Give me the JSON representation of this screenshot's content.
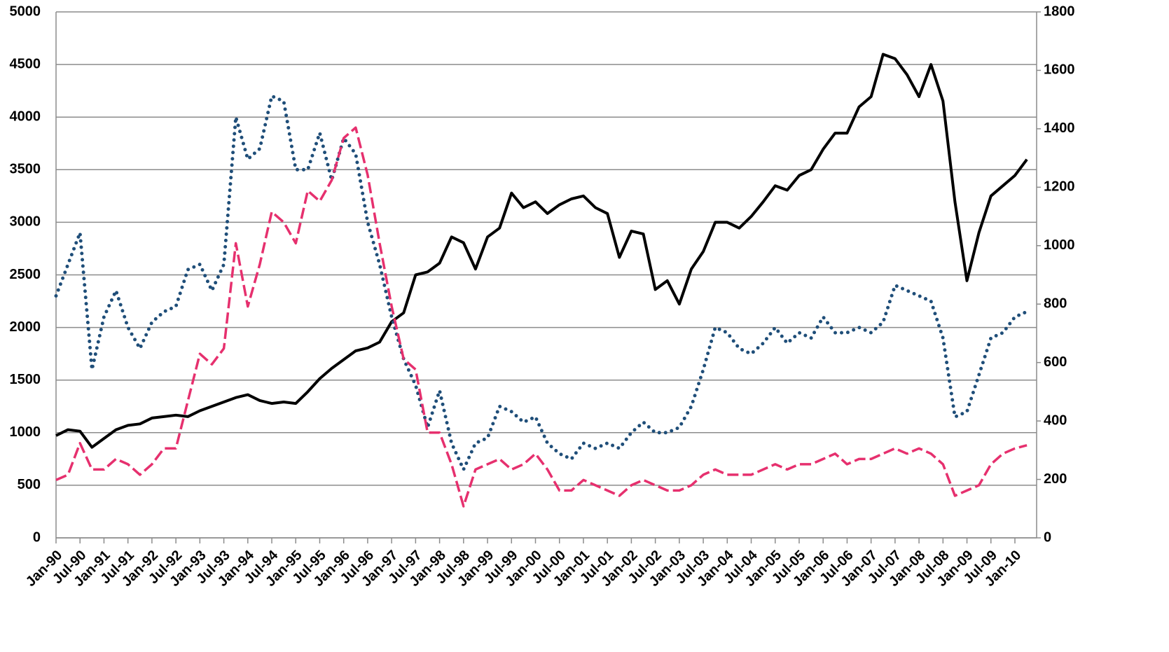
{
  "chart_data": {
    "type": "line",
    "categories": [
      "Jan-90",
      null,
      "Jul-90",
      null,
      "Jan-91",
      null,
      "Jul-91",
      null,
      "Jan-92",
      null,
      "Jul-92",
      null,
      "Jan-93",
      null,
      "Jul-93",
      null,
      "Jan-94",
      null,
      "Jul-94",
      null,
      "Jan-95",
      null,
      "Jul-95",
      null,
      "Jan-96",
      null,
      "Jul-96",
      null,
      "Jan-97",
      null,
      "Jul-97",
      null,
      "Jan-98",
      null,
      "Jul-98",
      null,
      "Jan-99",
      null,
      "Jul-99",
      null,
      "Jan-00",
      null,
      "Jul-00",
      null,
      "Jan-01",
      null,
      "Jul-01",
      null,
      "Jan-02",
      null,
      "Jul-02",
      null,
      "Jan-03",
      null,
      "Jul-03",
      null,
      "Jan-04",
      null,
      "Jul-04",
      null,
      "Jan-05",
      null,
      "Jul-05",
      null,
      "Jan-06",
      null,
      "Jul-06",
      null,
      "Jan-07",
      null,
      "Jul-07",
      null,
      "Jan-08",
      null,
      "Jul-08",
      null,
      "Jan-09",
      null,
      "Jul-09",
      null,
      "Jan-10",
      null
    ],
    "series": [
      {
        "color": "#000000",
        "dash": "solid",
        "axis": "y2",
        "values": [
          350,
          370,
          365,
          310,
          340,
          370,
          385,
          390,
          410,
          415,
          420,
          415,
          435,
          450,
          465,
          480,
          490,
          470,
          460,
          465,
          460,
          500,
          545,
          580,
          610,
          640,
          650,
          670,
          740,
          770,
          900,
          910,
          940,
          1030,
          1010,
          920,
          1030,
          1060,
          1180,
          1130,
          1150,
          1110,
          1140,
          1160,
          1170,
          1130,
          1110,
          960,
          1050,
          1040,
          850,
          880,
          800,
          920,
          980,
          1080,
          1080,
          1060,
          1100,
          1150,
          1205,
          1190,
          1240,
          1260,
          1330,
          1385,
          1385,
          1475,
          1510,
          1655,
          1640,
          1585,
          1510,
          1620,
          1495,
          1150,
          880,
          1045,
          1170,
          1205,
          1240,
          1295
        ]
      },
      {
        "color": "#1f4e79",
        "dash": "dotted",
        "values": [
          2300,
          2600,
          2900,
          1600,
          2100,
          2350,
          2000,
          1800,
          2050,
          2150,
          2200,
          2550,
          2600,
          2350,
          2600,
          4000,
          3600,
          3700,
          4200,
          4150,
          3500,
          3500,
          3850,
          3400,
          3800,
          3650,
          3000,
          2600,
          2100,
          1700,
          1450,
          1050,
          1400,
          900,
          650,
          900,
          950,
          1250,
          1200,
          1100,
          1150,
          900,
          800,
          750,
          900,
          850,
          900,
          850,
          1000,
          1100,
          1000,
          1000,
          1050,
          1250,
          1600,
          2000,
          1950,
          1800,
          1750,
          1850,
          2000,
          1850,
          1950,
          1900,
          2100,
          1950,
          1950,
          2000,
          1950,
          2050,
          2400,
          2350,
          2300,
          2250,
          1900,
          1150,
          1200,
          1550,
          1900,
          1950,
          2100,
          2150
        ]
      },
      {
        "color": "#e6306e",
        "dash": "dashed",
        "values": [
          550,
          600,
          900,
          650,
          650,
          750,
          700,
          600,
          700,
          850,
          850,
          1300,
          1750,
          1650,
          1800,
          2800,
          2200,
          2600,
          3100,
          3000,
          2800,
          3300,
          3200,
          3400,
          3800,
          3900,
          3450,
          2800,
          2200,
          1700,
          1600,
          1000,
          1000,
          700,
          300,
          650,
          700,
          750,
          650,
          700,
          800,
          650,
          450,
          450,
          550,
          500,
          450,
          400,
          500,
          550,
          500,
          450,
          450,
          500,
          600,
          650,
          600,
          600,
          600,
          650,
          700,
          650,
          700,
          700,
          750,
          800,
          700,
          750,
          750,
          800,
          850,
          800,
          850,
          800,
          700,
          400,
          450,
          500,
          700,
          800,
          850,
          880
        ]
      }
    ],
    "ylim": [
      0,
      5000
    ],
    "yticks": [
      0,
      500,
      1000,
      1500,
      2000,
      2500,
      3000,
      3500,
      4000,
      4500,
      5000
    ],
    "y2lim": [
      0,
      1800
    ],
    "y2ticks": [
      0,
      200,
      400,
      600,
      800,
      1000,
      1200,
      1400,
      1600,
      1800
    ],
    "grid": true
  }
}
